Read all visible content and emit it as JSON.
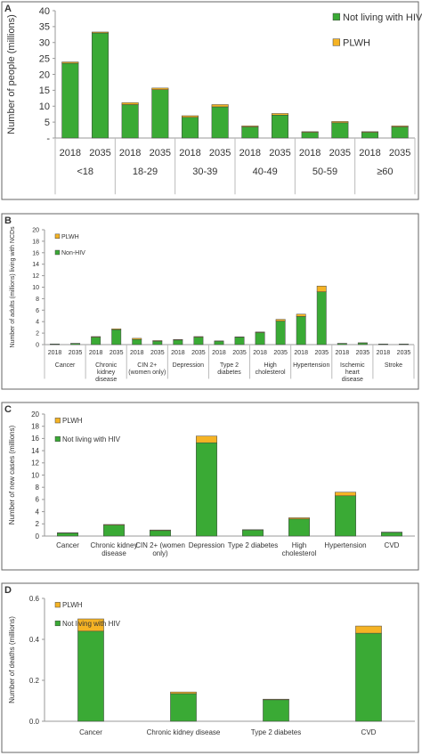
{
  "chart_data": [
    {
      "type": "bar",
      "label": "A",
      "ylabel": "Number of people (millions)",
      "categories": [
        "2018",
        "2035",
        "2018",
        "2035",
        "2018",
        "2035",
        "2018",
        "2035",
        "2018",
        "2035",
        "2018",
        "2035"
      ],
      "groups": [
        "<18",
        "18-29",
        "30-39",
        "40-49",
        "50-59",
        "≥60"
      ],
      "series": [
        {
          "name": "Not living with HIV",
          "color": "#3aaa35",
          "values": [
            23.5,
            33,
            10.5,
            15.2,
            6.5,
            9.8,
            3.5,
            7.2,
            1.8,
            4.8,
            1.8,
            3.5
          ]
        },
        {
          "name": "PLWH",
          "color": "#f5b324",
          "values": [
            0.4,
            0.3,
            0.6,
            0.5,
            0.5,
            0.7,
            0.3,
            0.5,
            0.2,
            0.4,
            0.2,
            0.3
          ]
        }
      ],
      "ylim": [
        0,
        40
      ],
      "yticks": [
        {
          "value": 0,
          "label": "-"
        },
        5,
        10,
        15,
        20,
        25,
        30,
        35,
        40
      ],
      "legend_position": "upper right",
      "legend_reversed": false
    },
    {
      "type": "bar",
      "label": "B",
      "ylabel": "Number of adults (millions) living with NCDs",
      "categories": [
        "2018",
        "2035",
        "2018",
        "2035",
        "2018",
        "2035",
        "2018",
        "2035",
        "2018",
        "2035",
        "2018",
        "2035",
        "2018",
        "2035",
        "2018",
        "2035",
        "2018",
        "2035"
      ],
      "groups": [
        "Cancer",
        "Chronic kidney disease",
        "CIN 2+ (women only)",
        "Depression",
        "Type 2 diabetes",
        "High cholesterol",
        "Hypertension",
        "Ischemic heart disease",
        "Stroke"
      ],
      "series": [
        {
          "name": "Non-HIV",
          "color": "#3aaa35",
          "values": [
            0.1,
            0.2,
            1.3,
            2.6,
            0.9,
            0.6,
            0.8,
            1.3,
            0.6,
            1.3,
            2.1,
            4.1,
            4.9,
            9.2,
            0.2,
            0.3,
            0.1,
            0.1
          ]
        },
        {
          "name": "PLWH",
          "color": "#f5b324",
          "values": [
            0.02,
            0.02,
            0.1,
            0.15,
            0.2,
            0.1,
            0.1,
            0.1,
            0.05,
            0.05,
            0.1,
            0.3,
            0.4,
            1.0,
            0.02,
            0.02,
            0.01,
            0.01
          ]
        }
      ],
      "ylim": [
        0,
        20
      ],
      "yticks": [
        0,
        2,
        4,
        6,
        8,
        10,
        12,
        14,
        16,
        18,
        20
      ],
      "legend_position": "upper left",
      "legend_reversed": true
    },
    {
      "type": "bar",
      "label": "C",
      "ylabel": "Number of new cases (millions)",
      "categories": [
        "Cancer",
        "Chronic kidney disease",
        "CIN 2+ (women only)",
        "Depression",
        "Type 2 diabetes",
        "High cholesterol",
        "Hypertension",
        "CVD"
      ],
      "series": [
        {
          "name": "Not living with HIV",
          "color": "#3aaa35",
          "values": [
            0.5,
            1.8,
            0.9,
            15.3,
            1.0,
            2.8,
            6.6,
            0.6
          ]
        },
        {
          "name": "PLWH",
          "color": "#f5b324",
          "values": [
            0.05,
            0.1,
            0.1,
            1.1,
            0.05,
            0.2,
            0.6,
            0.05
          ]
        }
      ],
      "ylim": [
        0,
        20
      ],
      "yticks": [
        0,
        2,
        4,
        6,
        8,
        10,
        12,
        14,
        16,
        18,
        20
      ],
      "legend_position": "upper left",
      "legend_reversed": true
    },
    {
      "type": "bar",
      "label": "D",
      "ylabel": "Number of deaths (millions)",
      "categories": [
        "Cancer",
        "Chronic kidney disease",
        "Type 2 diabetes",
        "CVD"
      ],
      "series": [
        {
          "name": "Not living with HIV",
          "color": "#3aaa35",
          "values": [
            0.44,
            0.135,
            0.105,
            0.43
          ]
        },
        {
          "name": "PLWH",
          "color": "#f5b324",
          "values": [
            0.06,
            0.008,
            0.003,
            0.035
          ]
        }
      ],
      "ylim": [
        0,
        0.6
      ],
      "yticks": [
        {
          "value": 0,
          "label": "0.0"
        },
        0.2,
        0.4,
        0.6
      ],
      "legend_position": "upper left",
      "legend_reversed": true
    }
  ]
}
